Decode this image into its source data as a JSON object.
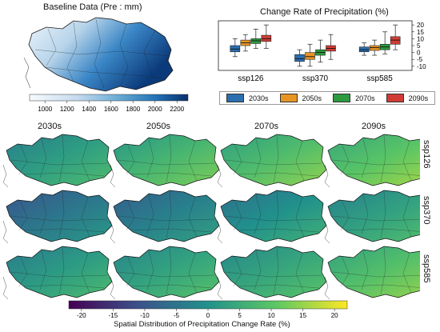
{
  "baseline": {
    "title": "Baseline Data (Pre : mm)",
    "colorbar_ticks": [
      "1000",
      "1200",
      "1400",
      "1600",
      "1800",
      "2000",
      "2200"
    ],
    "colorbar_range": [
      860,
      2300
    ],
    "colors": [
      "#f7fbff",
      "#c6dbef",
      "#6baed6",
      "#2171b5",
      "#08306b"
    ]
  },
  "box": {
    "title": "Change Rate of Precipitation (%)",
    "colors": {
      "2030s": "#2a6fb0",
      "2050s": "#e69525",
      "2070s": "#2c9a3d",
      "2090s": "#d03c34"
    }
  },
  "grid": {
    "columns": [
      "2030s",
      "2050s",
      "2070s",
      "2090s"
    ],
    "rows": [
      "ssp126",
      "ssp370",
      "ssp585"
    ],
    "colorbar_label": "Spatial Distribution of Precipitation Change Rate (%)",
    "colorbar_ticks": [
      "-20",
      "-15",
      "-10",
      "-5",
      "0",
      "5",
      "10",
      "15",
      "20"
    ],
    "colorbar_range": [
      -22,
      22
    ]
  },
  "chart_data": [
    {
      "type": "heatmap",
      "title": "Baseline Data (Pre : mm)",
      "xlabel": "",
      "ylabel": "",
      "colorbar": {
        "min": 860,
        "max": 2300,
        "ticks": [
          1000,
          1200,
          1400,
          1600,
          1800,
          2000,
          2200
        ]
      }
    },
    {
      "type": "box",
      "title": "Change Rate of Precipitation (%)",
      "categories": [
        "ssp126",
        "ssp370",
        "ssp585"
      ],
      "ylim": [
        -13,
        23
      ],
      "yticks": [
        -10,
        -5,
        0,
        5,
        10,
        15,
        20
      ],
      "legend_position": "bottom",
      "series": [
        {
          "name": "2030s",
          "stats": [
            {
              "low": -3,
              "q1": 0.5,
              "median": 2.5,
              "q3": 5,
              "high": 10
            },
            {
              "low": -10,
              "q1": -6.5,
              "median": -4.5,
              "q3": -1.5,
              "high": 2
            },
            {
              "low": -2,
              "q1": 0.5,
              "median": 2,
              "q3": 4,
              "high": 7
            }
          ]
        },
        {
          "name": "2050s",
          "stats": [
            {
              "low": 1,
              "q1": 5,
              "median": 7,
              "q3": 9,
              "high": 13
            },
            {
              "low": -10,
              "q1": -5,
              "median": -3,
              "q3": 0,
              "high": 6
            },
            {
              "low": -2,
              "q1": 1.5,
              "median": 3.5,
              "q3": 5,
              "high": 9
            }
          ]
        },
        {
          "name": "2070s",
          "stats": [
            {
              "low": 3,
              "q1": 6.5,
              "median": 8.5,
              "q3": 10,
              "high": 17
            },
            {
              "low": -7,
              "q1": -2,
              "median": 0,
              "q3": 2,
              "high": 9
            },
            {
              "low": -1,
              "q1": 2,
              "median": 4,
              "q3": 6,
              "high": 15
            }
          ]
        },
        {
          "name": "2090s",
          "stats": [
            {
              "low": 3,
              "q1": 8,
              "median": 10,
              "q3": 12.5,
              "high": 20
            },
            {
              "low": -5,
              "q1": 1,
              "median": 3,
              "q3": 5,
              "high": 13
            },
            {
              "low": 2,
              "q1": 6,
              "median": 9,
              "q3": 11.5,
              "high": 20
            }
          ]
        }
      ]
    },
    {
      "type": "heatmap",
      "title": "Spatial Distribution of Precipitation Change Rate (%)",
      "columns": [
        "2030s",
        "2050s",
        "2070s",
        "2090s"
      ],
      "rows": [
        "ssp126",
        "ssp370",
        "ssp585"
      ],
      "colorbar": {
        "min": -22,
        "max": 22,
        "ticks": [
          -20,
          -15,
          -10,
          -5,
          0,
          5,
          10,
          15,
          20
        ]
      },
      "mean_change": [
        [
          2.5,
          7,
          8.5,
          10
        ],
        [
          -4.5,
          -3,
          0,
          3
        ],
        [
          2,
          3.5,
          4,
          9
        ]
      ]
    }
  ]
}
